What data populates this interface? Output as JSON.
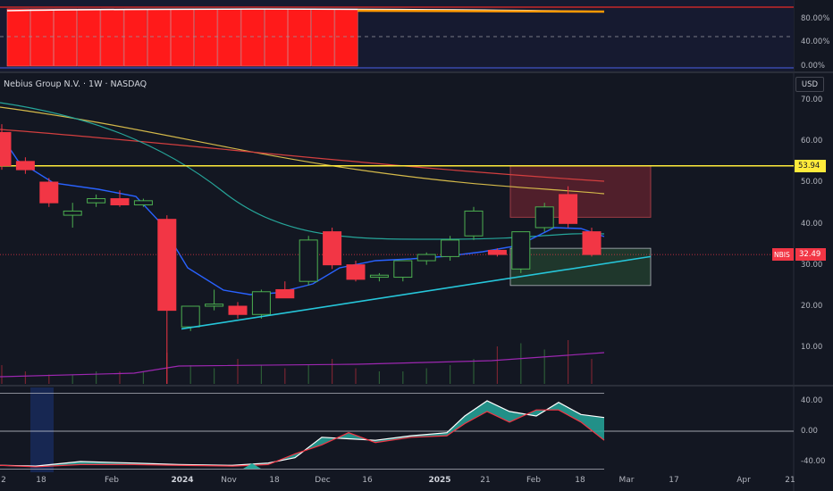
{
  "symbol_title": "Nebius Group N.V. · 1W · NASDAQ",
  "currency": "USD",
  "symbol_tag": "NBIS",
  "last_price_label": "32.49",
  "level_label": "53.94",
  "colors": {
    "background": "#131722",
    "up": "#4caf50",
    "down": "#f23645",
    "level": "#ffeb3b",
    "trendline": "#26c6da",
    "ma_blue": "#2962ff",
    "ma_teal": "#26a69a",
    "ma_yellow": "#d4b94a",
    "ma_red": "#d33f3f",
    "volume_ma": "#9c27b0"
  },
  "top_panel": {
    "ticks": [
      "80.00%",
      "40.00%",
      "0.00%"
    ]
  },
  "main_panel": {
    "ticks": [
      "70.00",
      "60.00",
      "50.00",
      "40.00",
      "30.00",
      "20.00",
      "10.00"
    ]
  },
  "osc_panel": {
    "ticks": [
      "40.00",
      "0.00",
      "-40.00"
    ]
  },
  "x_axis": [
    {
      "label": "2",
      "bold": false
    },
    {
      "label": "18",
      "bold": false
    },
    {
      "label": "Feb",
      "bold": false
    },
    {
      "label": "2024",
      "bold": true
    },
    {
      "label": "Nov",
      "bold": false
    },
    {
      "label": "18",
      "bold": false
    },
    {
      "label": "Dec",
      "bold": false
    },
    {
      "label": "16",
      "bold": false
    },
    {
      "label": "2025",
      "bold": true
    },
    {
      "label": "21",
      "bold": false
    },
    {
      "label": "Feb",
      "bold": false
    },
    {
      "label": "18",
      "bold": false
    },
    {
      "label": "Mar",
      "bold": false
    },
    {
      "label": "17",
      "bold": false
    },
    {
      "label": "Apr",
      "bold": false
    },
    {
      "label": "21",
      "bold": false
    }
  ],
  "chart_data": {
    "type": "candlestick",
    "ylim": [
      0,
      75
    ],
    "level": 53.94,
    "last": 32.49,
    "candles": [
      {
        "o": 62,
        "h": 64,
        "l": 53,
        "c": 54
      },
      {
        "o": 55,
        "h": 56,
        "l": 52,
        "c": 53
      },
      {
        "o": 50,
        "h": 51,
        "l": 44,
        "c": 45
      },
      {
        "o": 42,
        "h": 45,
        "l": 39,
        "c": 43
      },
      {
        "o": 45,
        "h": 47,
        "l": 44,
        "c": 46
      },
      {
        "o": 46,
        "h": 48,
        "l": 44,
        "c": 44.5
      },
      {
        "o": 44.5,
        "h": 46,
        "l": 44,
        "c": 45.5
      },
      {
        "o": 41,
        "h": 42,
        "l": 0,
        "c": 19
      },
      {
        "o": 15,
        "h": 20,
        "l": 14,
        "c": 20
      },
      {
        "o": 20,
        "h": 24,
        "l": 19,
        "c": 20.5
      },
      {
        "o": 20,
        "h": 21,
        "l": 17,
        "c": 18
      },
      {
        "o": 18,
        "h": 24,
        "l": 17,
        "c": 23.5
      },
      {
        "o": 24,
        "h": 26,
        "l": 22,
        "c": 22
      },
      {
        "o": 26,
        "h": 37,
        "l": 25,
        "c": 36
      },
      {
        "o": 38,
        "h": 39,
        "l": 29,
        "c": 30
      },
      {
        "o": 30,
        "h": 31,
        "l": 26,
        "c": 26.5
      },
      {
        "o": 27,
        "h": 28,
        "l": 26,
        "c": 27.5
      },
      {
        "o": 27,
        "h": 31,
        "l": 26,
        "c": 31
      },
      {
        "o": 31,
        "h": 33,
        "l": 30,
        "c": 32.5
      },
      {
        "o": 32,
        "h": 37,
        "l": 31,
        "c": 36
      },
      {
        "o": 37,
        "h": 44,
        "l": 36,
        "c": 43
      },
      {
        "o": 33.5,
        "h": 34,
        "l": 32,
        "c": 32.5
      },
      {
        "o": 29,
        "h": 38,
        "l": 28,
        "c": 38
      },
      {
        "o": 39,
        "h": 45,
        "l": 38,
        "c": 44
      },
      {
        "o": 47,
        "h": 49,
        "l": 39,
        "c": 40
      },
      {
        "o": 38,
        "h": 39,
        "l": 32,
        "c": 32.49
      }
    ],
    "trendline": [
      [
        14.5,
        1
      ],
      [
        32,
        4
      ]
    ],
    "zones": [
      {
        "type": "resistance",
        "from": 41.5,
        "to": 53.9
      },
      {
        "type": "support",
        "from": 25,
        "to": 34
      }
    ],
    "volumes": [
      3,
      2,
      1.5,
      1.5,
      2,
      2,
      2,
      5,
      3,
      2.5,
      4,
      3,
      2.5,
      3,
      4,
      2.5,
      2,
      2,
      2.5,
      3,
      4,
      6,
      6.5,
      5.5,
      7,
      4
    ]
  }
}
